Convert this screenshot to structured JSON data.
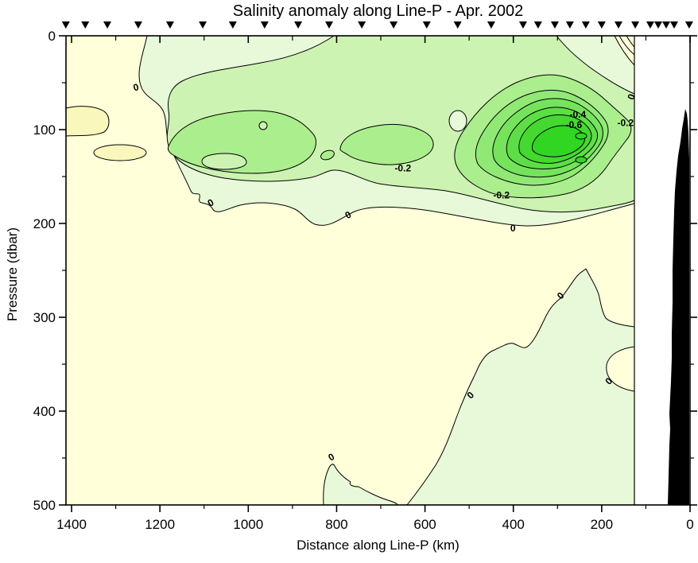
{
  "title": "Salinity anomaly along Line-P - Apr. 2002",
  "x_axis": {
    "label": "Distance along Line-P (km)",
    "tick_values": [
      1400,
      1200,
      1000,
      800,
      600,
      400,
      200,
      0
    ],
    "minor_tick_values": [
      1300,
      1100,
      900,
      700,
      500,
      300,
      100
    ],
    "reversed": true
  },
  "y_axis": {
    "label": "Pressure (dbar)",
    "tick_values": [
      0,
      100,
      200,
      300,
      400,
      500
    ],
    "minor_tick_values": [
      50,
      150,
      250,
      350,
      450
    ],
    "inverted": true
  },
  "chart_data": {
    "type": "heatmap",
    "variant": "filled-contour-ocean-section",
    "title": "Salinity anomaly along Line-P - Apr. 2002",
    "xlabel": "Distance along Line-P (km)",
    "ylabel": "Pressure (dbar)",
    "x_range_km": [
      1400,
      0
    ],
    "y_range_dbar": [
      0,
      500
    ],
    "grid": false,
    "legend": "none",
    "contour_interval": 0.1,
    "labeled_contour_levels": [
      0,
      -0.2,
      -0.4,
      -0.6
    ],
    "anomaly_core": {
      "position_km": 300,
      "depth_dbar": 115,
      "min_value": "below -0.7"
    },
    "features": [
      "Strong fresh (negative) anomaly bullseye near 200-400 km at ~80-200 dbar, minimum below -0.7",
      "Secondary fresh patches near 600-800 km and 1050-1200 km at ~100-200 dbar",
      "Weak / zero anomaly (cream) below ~200 dbar offshore; mild negative tongue rising from depth near 100-400 km",
      "Small positive anomaly pockets near 1350-1420 km at ~80-130 dbar and at the surface near the coast",
      "Black seafloor/continental-slope silhouette at the eastern (0 km) coastal end, from ~80 dbar to bottom",
      "Inverted-triangle station markers along the top, denser near the coast"
    ],
    "station_positions_km": [
      1413,
      1369,
      1319,
      1249,
      1177,
      1103,
      1035,
      963,
      887,
      817,
      743,
      671,
      596,
      526,
      450,
      378,
      344,
      306,
      272,
      236,
      200,
      162,
      124,
      90,
      72,
      54,
      36,
      2
    ],
    "contour_labels": [
      {
        "text": "0",
        "km": 1254,
        "dbar": 55,
        "rot": -15
      },
      {
        "text": "0",
        "km": 1085,
        "dbar": 178,
        "rot": -30
      },
      {
        "text": "0",
        "km": 774,
        "dbar": 191,
        "rot": -30
      },
      {
        "text": "0",
        "km": 401,
        "dbar": 205,
        "rot": 0
      },
      {
        "text": "0",
        "km": 293,
        "dbar": 277,
        "rot": -45
      },
      {
        "text": "0",
        "km": 184,
        "dbar": 368,
        "rot": -45
      },
      {
        "text": "0",
        "km": 497,
        "dbar": 383,
        "rot": -45
      },
      {
        "text": "0",
        "km": 812,
        "dbar": 449,
        "rot": -30
      },
      {
        "text": "0",
        "km": 133,
        "dbar": 65,
        "rot": -70
      },
      {
        "text": "-0.2",
        "km": 650,
        "dbar": 141,
        "rot": 0
      },
      {
        "text": "-0.2",
        "km": 427,
        "dbar": 170,
        "rot": 0
      },
      {
        "text": "-0.2",
        "km": 146,
        "dbar": 93,
        "rot": 0
      },
      {
        "text": "-0.4",
        "km": 254,
        "dbar": 84,
        "rot": 0
      },
      {
        "text": "-0.6",
        "km": 263,
        "dbar": 95,
        "rot": 0
      }
    ],
    "fill_colors": {
      "background": "#FFFFDA",
      "positive": "#FAF7BC",
      "n01": "#E7F9D8",
      "n02": "#CDF3B2",
      "n03": "#ABEE8D",
      "n04": "#90E975",
      "n05": "#76E35C",
      "n06": "#5DDE47",
      "n07": "#44D831",
      "n08": "#30D622",
      "land": "#000000",
      "frame": "#000000"
    },
    "fill_legend": [
      {
        "range": "local positive maxima",
        "key": "positive"
      },
      {
        "range": "near zero / positive",
        "key": "background"
      },
      {
        "range": "0 to -0.1",
        "key": "n01"
      },
      {
        "range": "-0.1 to -0.2",
        "key": "n02"
      },
      {
        "range": "-0.2 to -0.3",
        "key": "n03"
      },
      {
        "range": "-0.3 to -0.4",
        "key": "n04"
      },
      {
        "range": "-0.4 to -0.5",
        "key": "n05"
      },
      {
        "range": "-0.5 to -0.6",
        "key": "n06"
      },
      {
        "range": "-0.6 to -0.7",
        "key": "n07"
      },
      {
        "range": "below -0.7",
        "key": "n08"
      }
    ]
  }
}
